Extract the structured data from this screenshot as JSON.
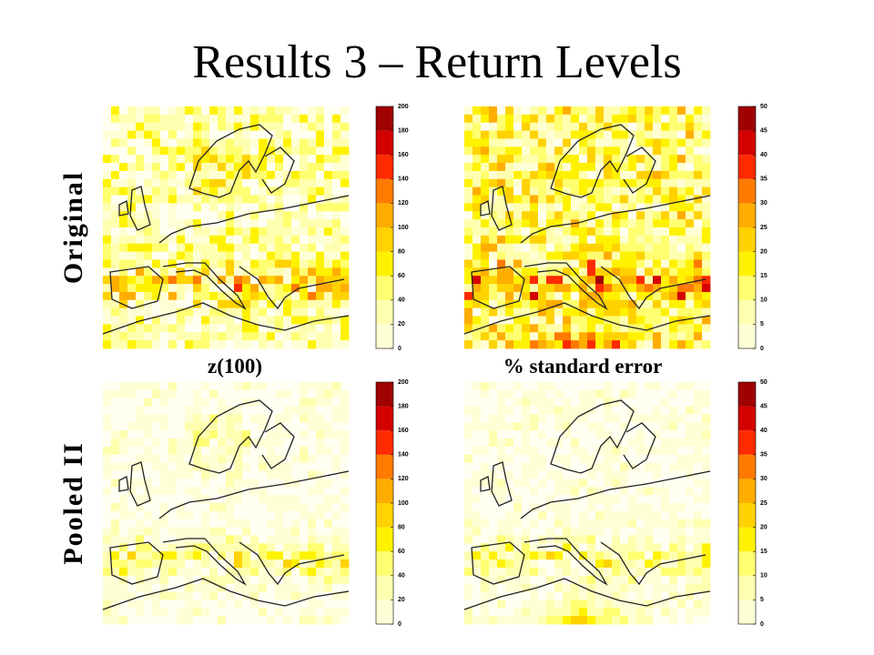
{
  "title": "Results 3 – Return Levels",
  "rows": [
    "Original",
    "Pooled II"
  ],
  "columns": [
    {
      "label": "z(100)",
      "colorbar_ticks": [
        0,
        20,
        40,
        60,
        80,
        100,
        120,
        140,
        160,
        180,
        200
      ]
    },
    {
      "label": "% standard error",
      "colorbar_ticks": [
        0,
        5,
        10,
        15,
        20,
        25,
        30,
        35,
        40,
        45,
        50
      ]
    }
  ]
}
